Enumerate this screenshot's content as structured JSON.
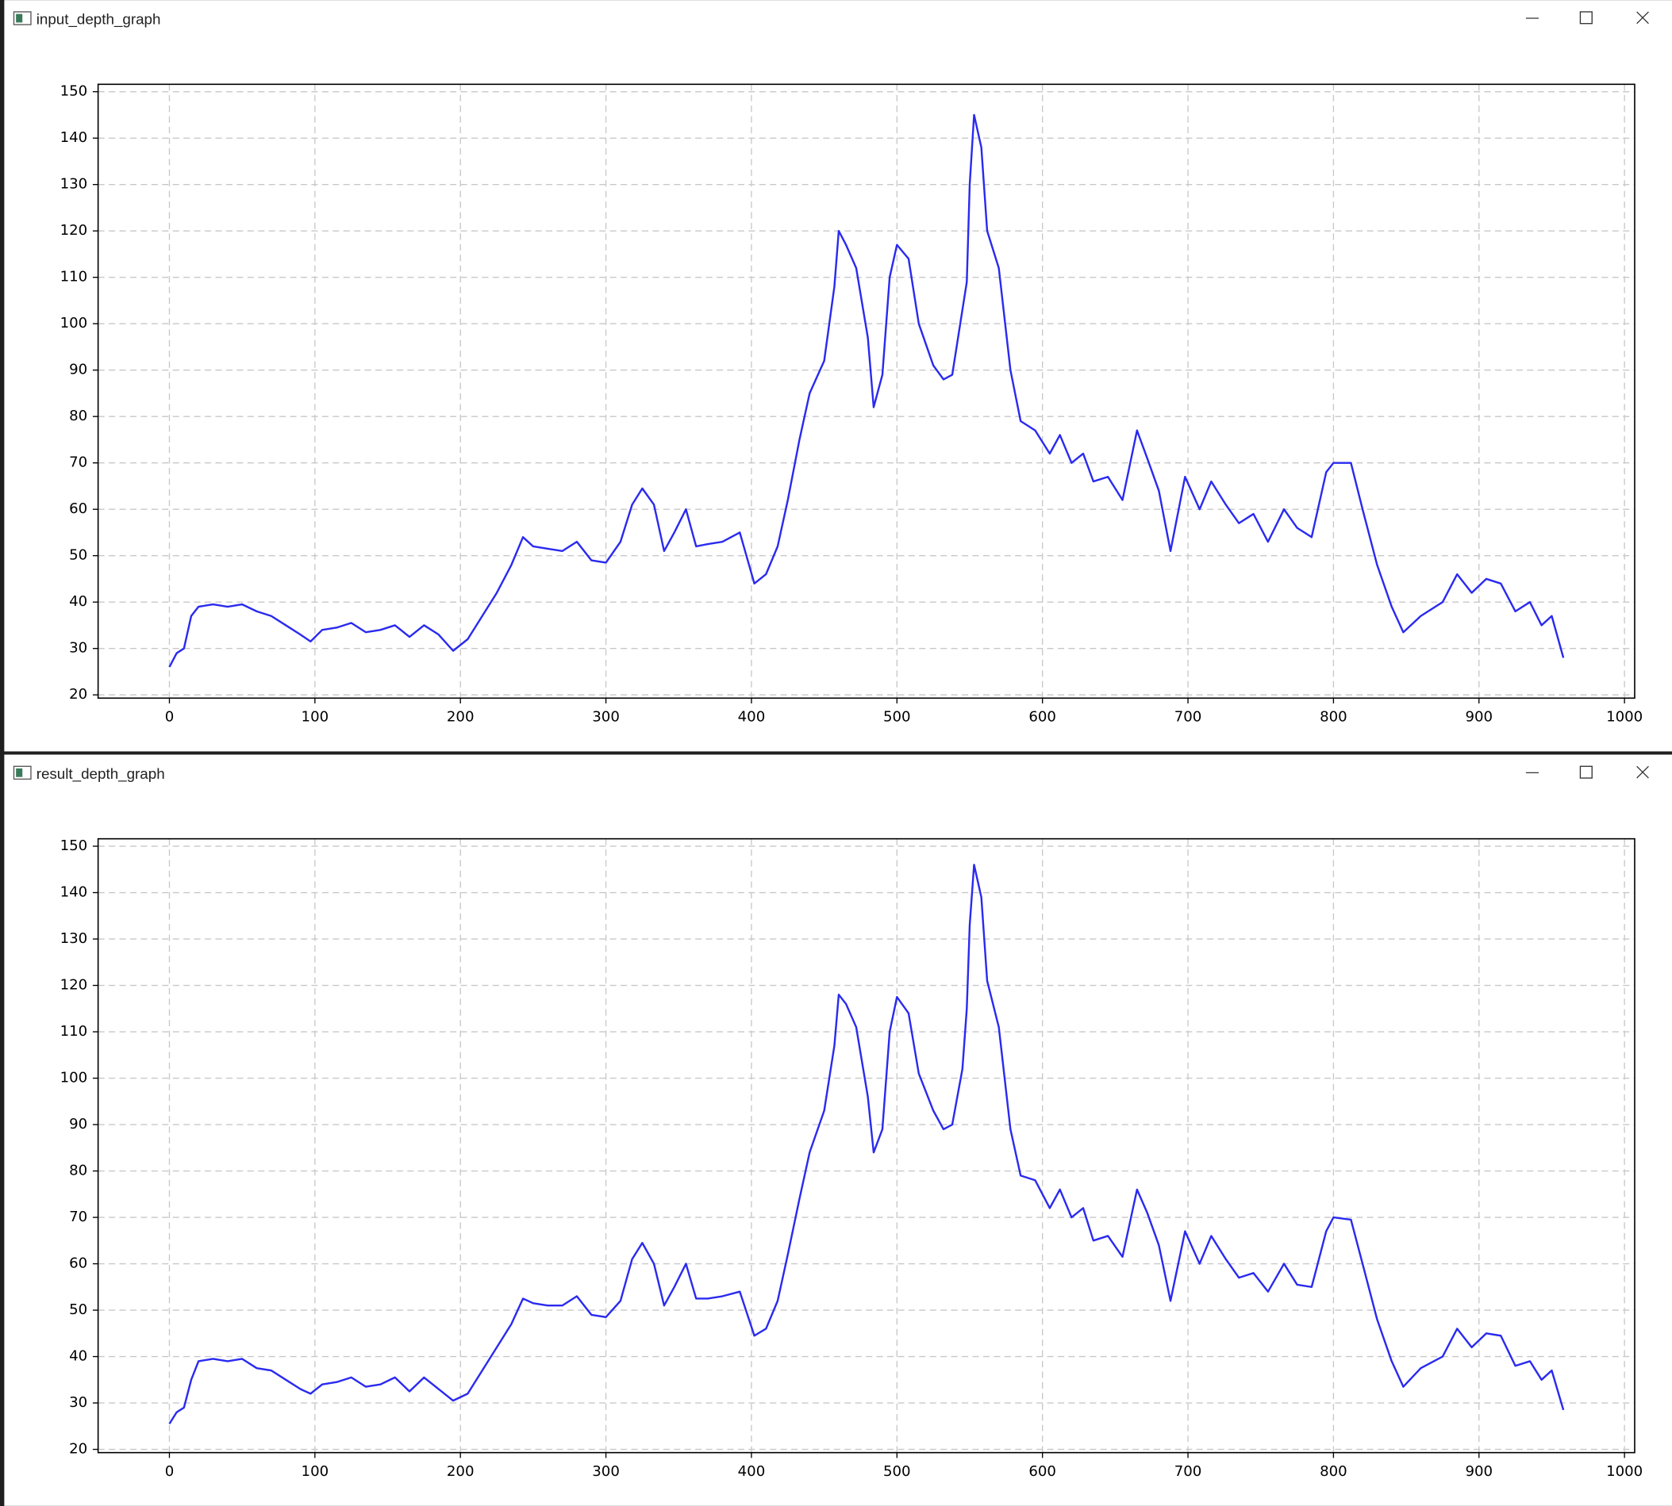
{
  "chart_data": [
    {
      "type": "line",
      "title": "input_depth_graph",
      "x": [
        0,
        5,
        10,
        15,
        20,
        30,
        40,
        50,
        60,
        70,
        80,
        90,
        97,
        105,
        115,
        125,
        135,
        145,
        155,
        165,
        175,
        185,
        195,
        205,
        215,
        225,
        235,
        243,
        250,
        260,
        270,
        280,
        290,
        300,
        310,
        318,
        325,
        333,
        340,
        347,
        355,
        362,
        370,
        380,
        392,
        402,
        410,
        418,
        425,
        433,
        440,
        450,
        457,
        460,
        465,
        472,
        480,
        484,
        490,
        495,
        500,
        508,
        515,
        525,
        532,
        538,
        545,
        548,
        550,
        553,
        558,
        562,
        570,
        578,
        585,
        595,
        605,
        612,
        620,
        628,
        635,
        645,
        655,
        665,
        672,
        680,
        688,
        698,
        708,
        716,
        726,
        735,
        745,
        755,
        766,
        775,
        785,
        795,
        800,
        812,
        820,
        830,
        840,
        848,
        860,
        875,
        885,
        895,
        905,
        915,
        925,
        935,
        943,
        950,
        958
      ],
      "series": [
        {
          "color": "#2a2af0",
          "values": [
            26,
            29,
            30,
            37,
            39,
            39.5,
            39,
            39.5,
            38,
            37,
            35,
            33,
            31.5,
            34,
            34.5,
            35.5,
            33.5,
            34,
            35,
            32.5,
            35,
            33,
            29.5,
            32,
            37,
            42,
            48,
            54,
            52,
            51.5,
            51,
            53,
            49,
            48.5,
            53,
            61,
            64.5,
            61,
            51,
            55,
            60,
            52,
            52.5,
            53,
            55,
            44,
            46,
            52,
            62,
            75,
            85,
            92,
            108,
            120,
            117,
            112,
            97,
            82,
            89,
            110,
            117,
            114,
            100,
            91,
            88,
            89,
            103,
            109,
            130,
            145,
            138,
            120,
            112,
            90,
            79,
            77,
            72,
            76,
            70,
            72,
            66,
            67,
            62,
            77,
            71,
            64,
            51,
            67,
            60,
            66,
            61,
            57,
            59,
            53,
            60,
            56,
            54,
            68,
            70,
            70,
            60,
            48,
            39,
            33.5,
            37,
            40,
            46,
            42,
            45,
            44,
            38,
            40,
            35,
            37,
            28
          ]
        }
      ],
      "xlim": [
        -49,
        1007
      ],
      "ylim": [
        19.3,
        151.6
      ],
      "xticks": [
        0,
        100,
        200,
        300,
        400,
        500,
        600,
        700,
        800,
        900,
        1000
      ],
      "yticks": [
        20,
        30,
        40,
        50,
        60,
        70,
        80,
        90,
        100,
        110,
        120,
        130,
        140,
        150
      ],
      "grid": true
    },
    {
      "type": "line",
      "title": "result_depth_graph",
      "x": [
        0,
        5,
        10,
        15,
        20,
        30,
        40,
        50,
        60,
        70,
        80,
        90,
        97,
        105,
        115,
        125,
        135,
        145,
        155,
        165,
        175,
        185,
        195,
        205,
        215,
        225,
        235,
        243,
        250,
        260,
        270,
        280,
        290,
        300,
        310,
        318,
        325,
        333,
        340,
        347,
        355,
        362,
        370,
        380,
        392,
        402,
        410,
        418,
        425,
        433,
        440,
        450,
        457,
        460,
        465,
        472,
        480,
        484,
        490,
        495,
        500,
        508,
        515,
        525,
        532,
        538,
        545,
        548,
        550,
        553,
        558,
        562,
        570,
        578,
        585,
        595,
        605,
        612,
        620,
        628,
        635,
        645,
        655,
        665,
        672,
        680,
        688,
        698,
        708,
        716,
        726,
        735,
        745,
        755,
        766,
        775,
        785,
        795,
        800,
        812,
        820,
        830,
        840,
        848,
        860,
        875,
        885,
        895,
        905,
        915,
        925,
        935,
        943,
        950,
        958
      ],
      "series": [
        {
          "color": "#2a2af0",
          "values": [
            25.5,
            28,
            29,
            35,
            39,
            39.5,
            39,
            39.5,
            37.5,
            37,
            35,
            33,
            32,
            34,
            34.5,
            35.5,
            33.5,
            34,
            35.5,
            32.5,
            35.5,
            33,
            30.5,
            32,
            37,
            42,
            47,
            52.5,
            51.5,
            51,
            51,
            53,
            49,
            48.5,
            52,
            61,
            64.5,
            60,
            51,
            55,
            60,
            52.5,
            52.5,
            53,
            54,
            44.5,
            46,
            52,
            62,
            74,
            84,
            93,
            107,
            118,
            116,
            111,
            96,
            84,
            89,
            110,
            117.5,
            114,
            101,
            93,
            89,
            90,
            102,
            115,
            133,
            146,
            139,
            121,
            111,
            89,
            79,
            78,
            72,
            76,
            70,
            72,
            65,
            66,
            61.5,
            76,
            71,
            64,
            52,
            67,
            60,
            66,
            61,
            57,
            58,
            54,
            60,
            55.5,
            55,
            67,
            70,
            69.5,
            60,
            48,
            39,
            33.5,
            37.5,
            40,
            46,
            42,
            45,
            44.5,
            38,
            39,
            35,
            37,
            28.5
          ]
        }
      ],
      "xlim": [
        -49,
        1007
      ],
      "ylim": [
        19.3,
        151.6
      ],
      "xticks": [
        0,
        100,
        200,
        300,
        400,
        500,
        600,
        700,
        800,
        900,
        1000
      ],
      "yticks": [
        20,
        30,
        40,
        50,
        60,
        70,
        80,
        90,
        100,
        110,
        120,
        130,
        140,
        150
      ],
      "grid": true
    }
  ]
}
